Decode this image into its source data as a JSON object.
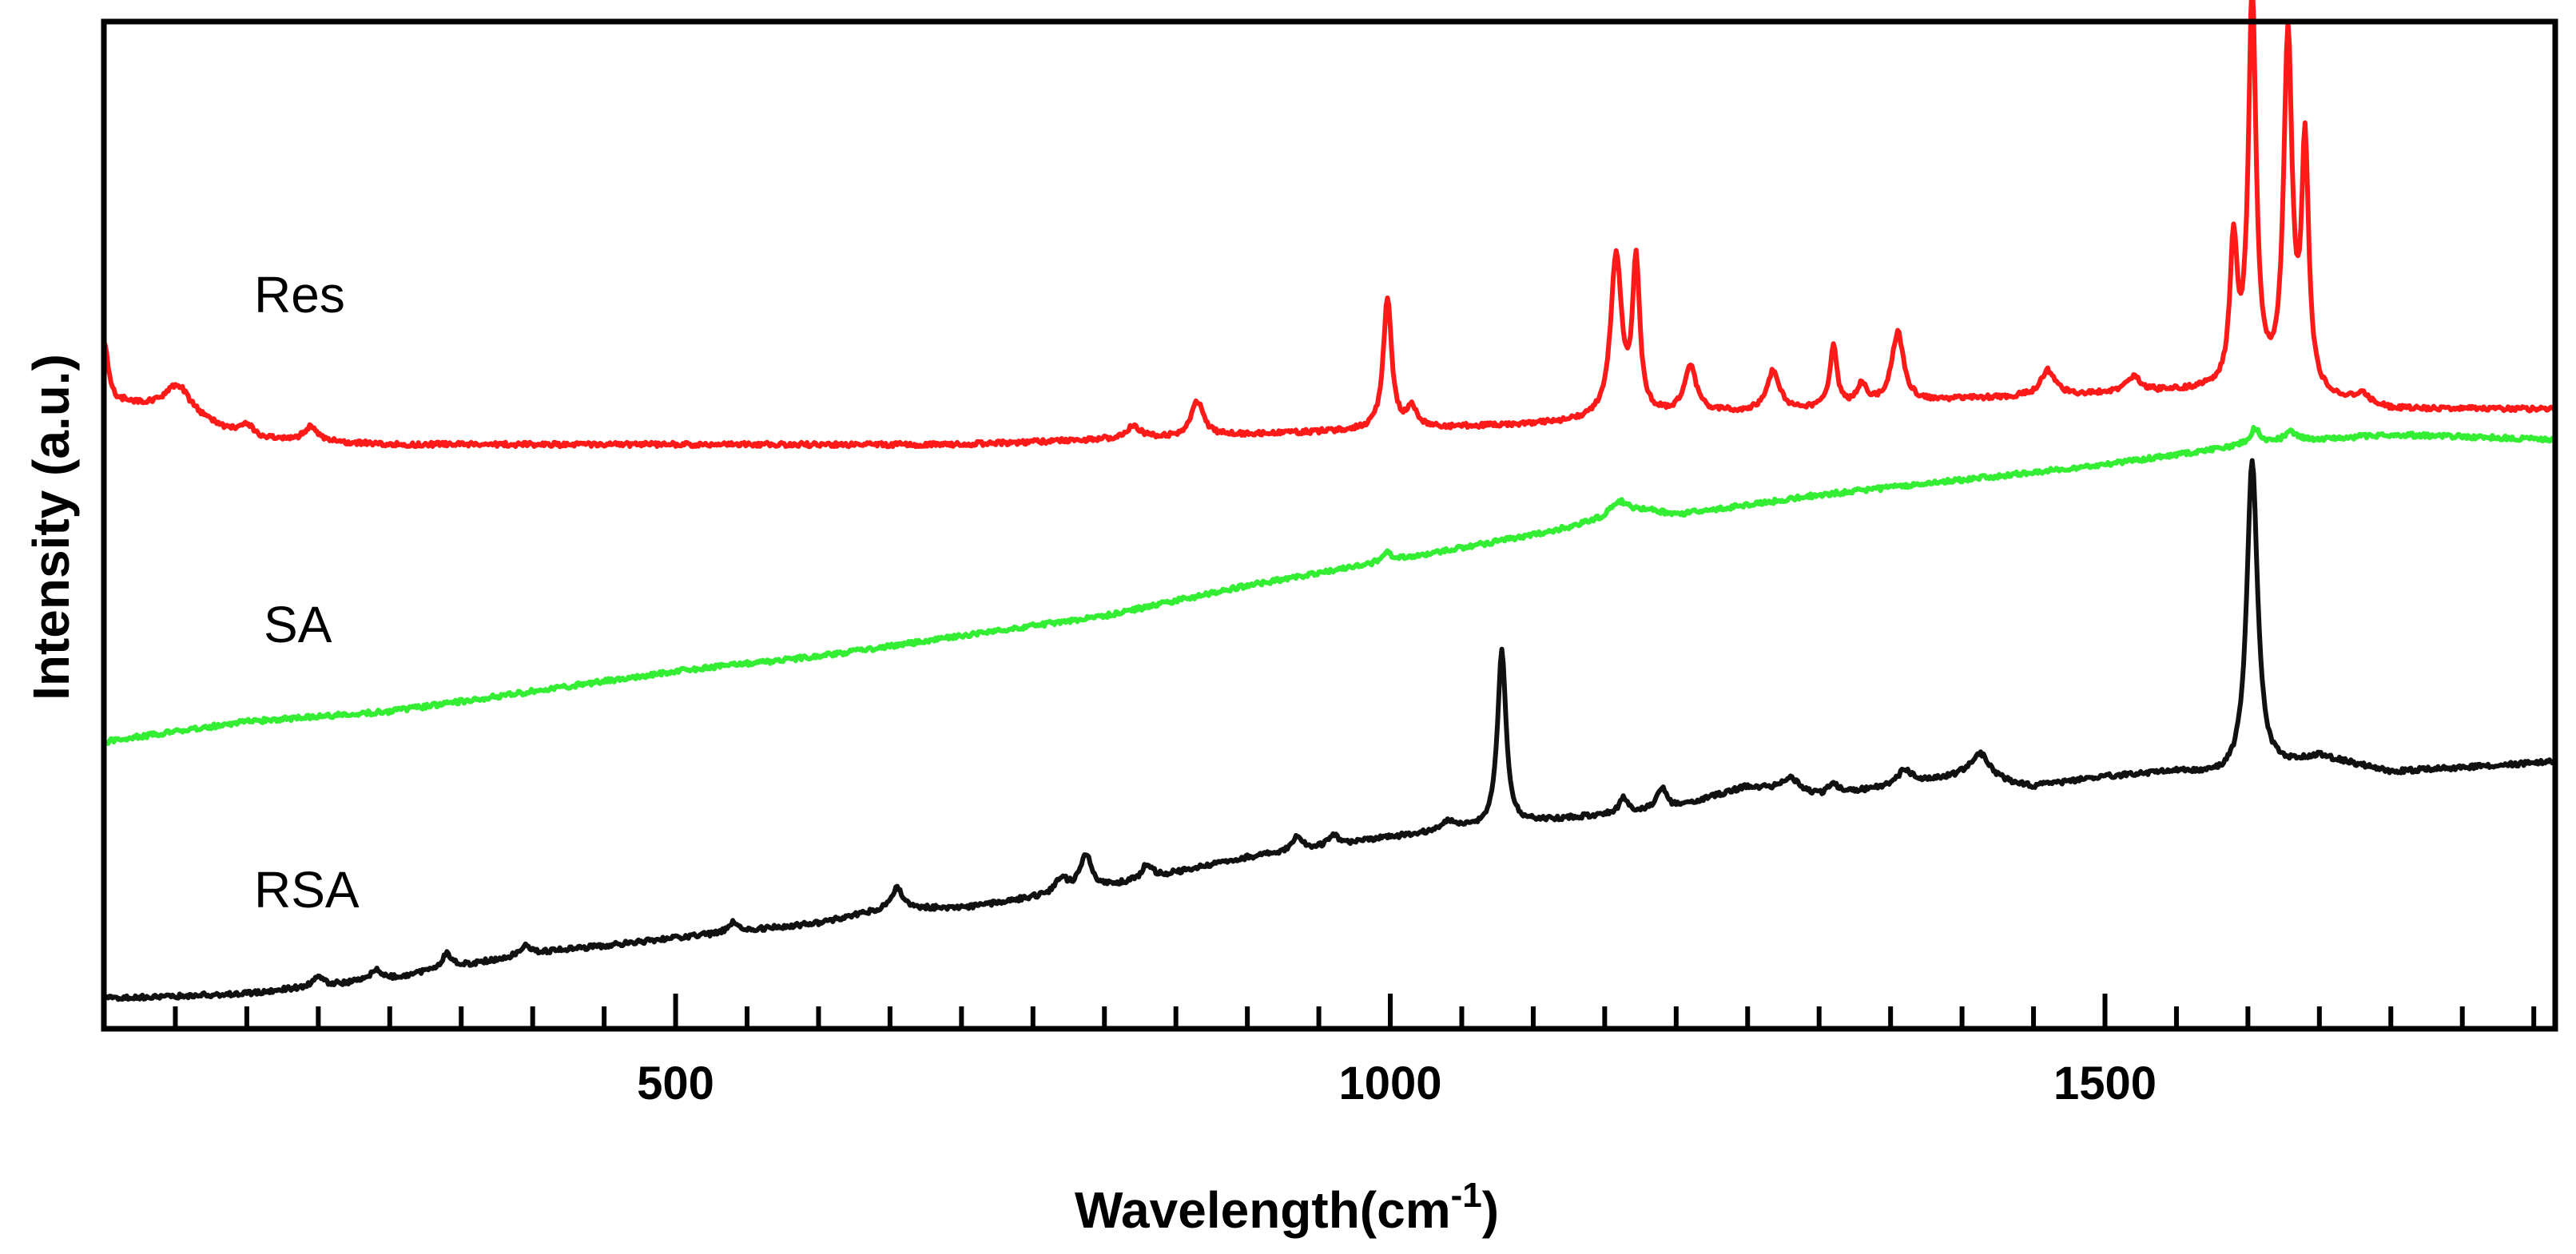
{
  "chart_data": {
    "type": "line",
    "title": "",
    "xlabel": "Wavelength(cm",
    "xlabel_superscript": "-1",
    "xlabel_suffix": ")",
    "ylabel": "Intensity (a.u.)",
    "xlim": [
      100,
      1815
    ],
    "ylim": [
      0,
      100
    ],
    "x_ticks": [
      500,
      1000,
      1500
    ],
    "x_tick_labels": [
      "500",
      "1000",
      "1500"
    ],
    "x_minor_step": 50,
    "y_ticks_shown": false,
    "grid": false,
    "legend": "inline labels at left",
    "series": [
      {
        "name": "Res",
        "color": "#ff1a1a",
        "baseline": [
          [
            100,
            61
          ],
          [
            115,
            62
          ],
          [
            150,
            61.5
          ],
          [
            200,
            58.5
          ],
          [
            300,
            58
          ],
          [
            500,
            58
          ],
          [
            700,
            58
          ],
          [
            900,
            59
          ],
          [
            1000,
            59.5
          ],
          [
            1100,
            60
          ],
          [
            1200,
            61
          ],
          [
            1300,
            61.5
          ],
          [
            1400,
            62.5
          ],
          [
            1500,
            63
          ],
          [
            1600,
            63.5
          ],
          [
            1700,
            61.5
          ],
          [
            1815,
            61.5
          ]
        ],
        "peaks": [
          [
            100,
            7,
            4
          ],
          [
            152,
            2.5,
            10
          ],
          [
            200,
            1.5,
            6
          ],
          [
            245,
            1.5,
            6
          ],
          [
            820,
            1.2,
            6
          ],
          [
            865,
            3.5,
            5
          ],
          [
            998,
            13,
            3.5
          ],
          [
            1015,
            2,
            4
          ],
          [
            1158,
            16,
            4.5
          ],
          [
            1172,
            15,
            3
          ],
          [
            1210,
            4.5,
            5
          ],
          [
            1268,
            4,
            5
          ],
          [
            1310,
            6,
            3
          ],
          [
            1330,
            2,
            4
          ],
          [
            1355,
            7,
            5
          ],
          [
            1460,
            2.5,
            6
          ],
          [
            1520,
            1.5,
            6
          ],
          [
            1590,
            14,
            3
          ],
          [
            1603,
            39,
            3.2
          ],
          [
            1628,
            35,
            3.5
          ],
          [
            1640,
            24,
            3
          ],
          [
            1680,
            1,
            6
          ]
        ]
      },
      {
        "name": "SA",
        "color": "#33ee33",
        "baseline": [
          [
            100,
            28.5
          ],
          [
            200,
            30.5
          ],
          [
            300,
            31.5
          ],
          [
            400,
            33.5
          ],
          [
            500,
            35.5
          ],
          [
            600,
            37
          ],
          [
            700,
            39
          ],
          [
            800,
            41
          ],
          [
            900,
            44
          ],
          [
            1000,
            46.5
          ],
          [
            1100,
            49
          ],
          [
            1180,
            51.5
          ],
          [
            1200,
            51
          ],
          [
            1300,
            53
          ],
          [
            1400,
            54.5
          ],
          [
            1500,
            56
          ],
          [
            1600,
            58
          ],
          [
            1700,
            59
          ],
          [
            1815,
            58.5
          ]
        ],
        "peaks": [
          [
            1160,
            1.5,
            8
          ],
          [
            998,
            0.8,
            4
          ],
          [
            1605,
            1.5,
            4
          ],
          [
            1630,
            1,
            5
          ]
        ]
      },
      {
        "name": "RSA",
        "color": "#111111",
        "baseline": [
          [
            100,
            3
          ],
          [
            200,
            3.5
          ],
          [
            300,
            5
          ],
          [
            400,
            7.5
          ],
          [
            500,
            9
          ],
          [
            600,
            10.5
          ],
          [
            650,
            12
          ],
          [
            700,
            12
          ],
          [
            800,
            14
          ],
          [
            900,
            17
          ],
          [
            1000,
            19
          ],
          [
            1100,
            20.5
          ],
          [
            1200,
            22
          ],
          [
            1250,
            24
          ],
          [
            1300,
            23
          ],
          [
            1400,
            25
          ],
          [
            1450,
            24
          ],
          [
            1500,
            25
          ],
          [
            1550,
            25.5
          ],
          [
            1580,
            25
          ],
          [
            1600,
            25
          ],
          [
            1650,
            27
          ],
          [
            1700,
            25.5
          ],
          [
            1815,
            26.5
          ]
        ],
        "peaks": [
          [
            1078,
            17.5,
            3.5
          ],
          [
            1603,
            31.5,
            4.5
          ],
          [
            1413,
            2.5,
            8
          ],
          [
            1360,
            1.5,
            6
          ],
          [
            1163,
            1.5,
            3
          ],
          [
            1190,
            2,
            4
          ],
          [
            1280,
            1.5,
            8
          ],
          [
            1310,
            1,
            5
          ],
          [
            655,
            2,
            4
          ],
          [
            787,
            3.5,
            5
          ],
          [
            770,
            1.5,
            5
          ],
          [
            830,
            1.5,
            4
          ],
          [
            935,
            1.5,
            4
          ],
          [
            960,
            1,
            4
          ],
          [
            1040,
            1,
            6
          ],
          [
            290,
            1,
            4
          ],
          [
            340,
            1.5,
            4
          ],
          [
            540,
            1,
            4
          ],
          [
            395,
            1,
            4
          ],
          [
            250,
            1,
            4
          ]
        ]
      }
    ],
    "annotations": [
      "Res",
      "SA",
      "RSA"
    ]
  }
}
